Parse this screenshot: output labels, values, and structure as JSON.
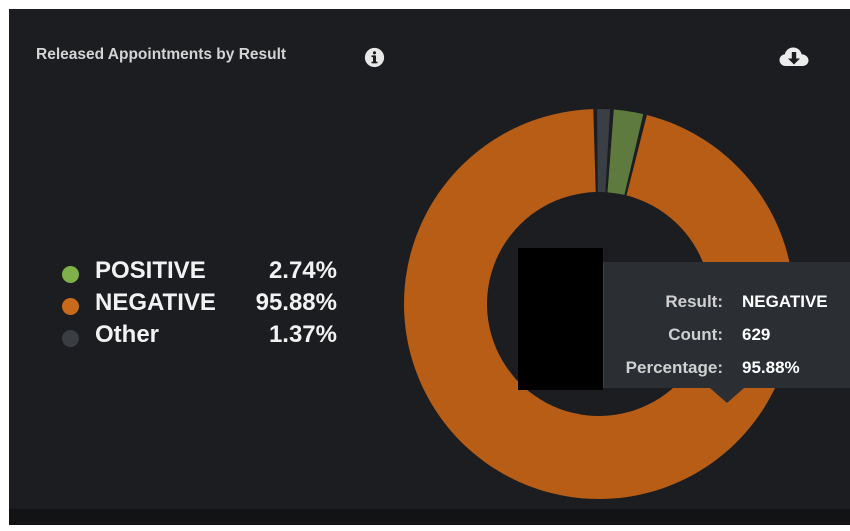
{
  "card": {
    "title": "Released Appointments by Result",
    "info_icon": "info-circle-icon",
    "download_icon": "cloud-download-icon"
  },
  "colors": {
    "positive": "#5f7a3e",
    "negative": "#b75d16",
    "other": "#3a3f45",
    "legend_positive": "#7fb04a",
    "legend_negative": "#c86a1c",
    "legend_other": "#3a3d42",
    "background": "#1b1d20"
  },
  "legend": [
    {
      "label": "POSITIVE",
      "percent": "2.74%"
    },
    {
      "label": "NEGATIVE",
      "percent": "95.88%"
    },
    {
      "label": "Other",
      "percent": "1.37%"
    }
  ],
  "tooltip": {
    "result_label": "Result:",
    "result_value": "NEGATIVE",
    "count_label": "Count:",
    "count_value": "629",
    "percentage_label": "Percentage:",
    "percentage_value": "95.88%"
  },
  "chart_data": {
    "type": "pie",
    "title": "Released Appointments by Result",
    "donut": true,
    "categories": [
      "POSITIVE",
      "NEGATIVE",
      "Other"
    ],
    "values": [
      2.74,
      95.88,
      1.37
    ],
    "legend": "left"
  }
}
